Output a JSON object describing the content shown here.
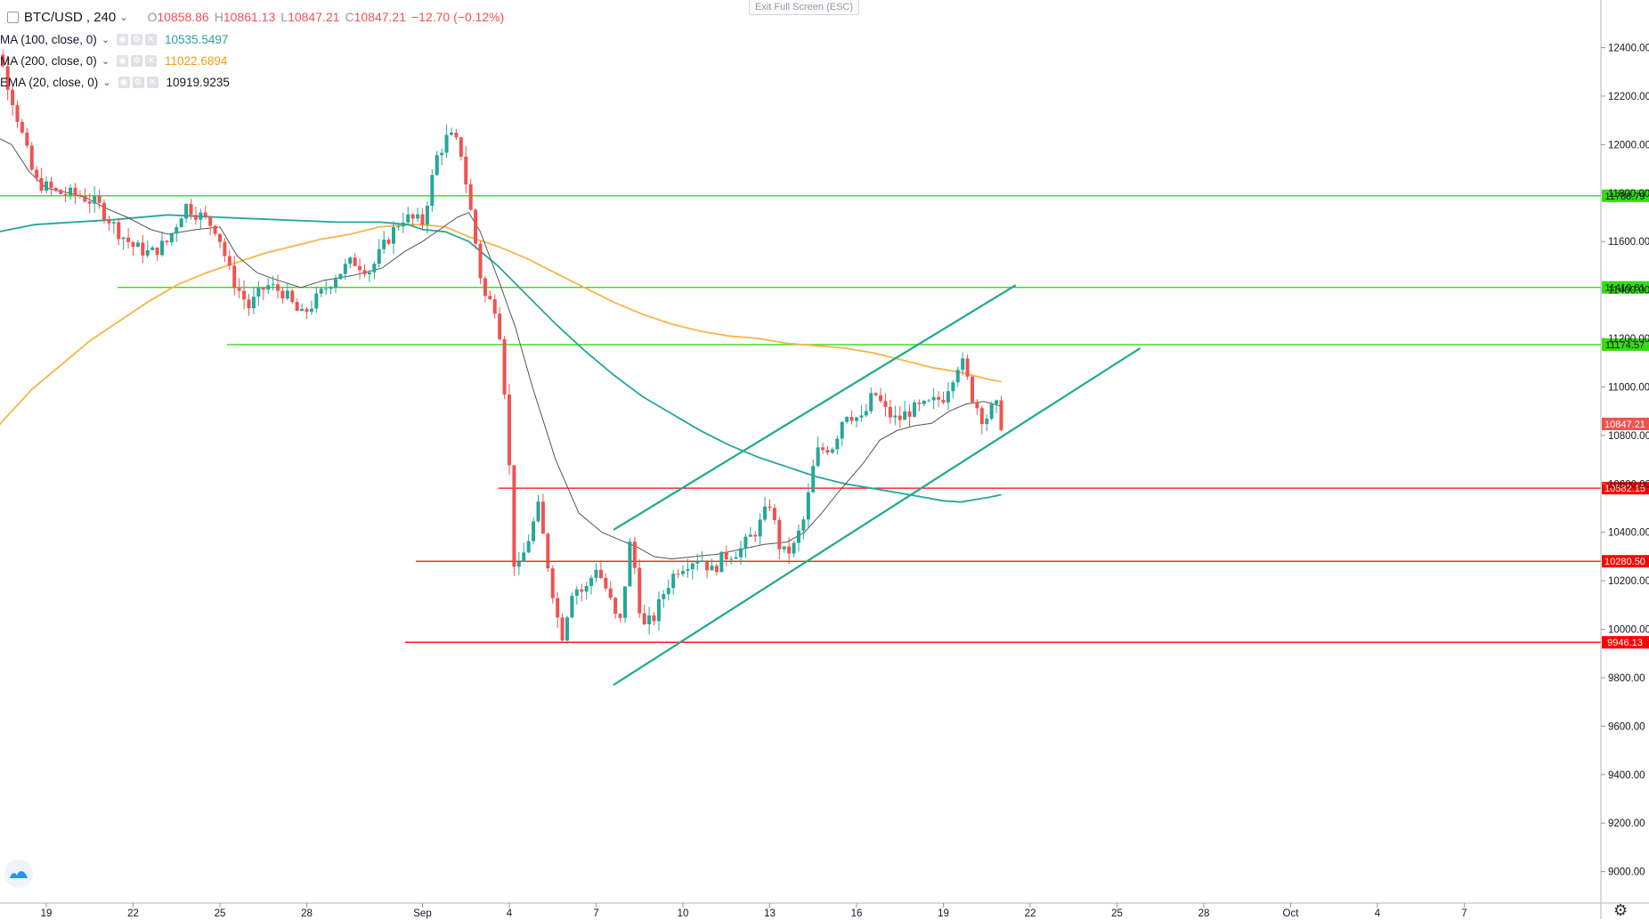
{
  "header": {
    "symbol": "BTC/USD",
    "interval": "240",
    "ohlc": [
      {
        "label": "O",
        "value": "10858.86"
      },
      {
        "label": "H",
        "value": "10861.13"
      },
      {
        "label": "L",
        "value": "10847.21"
      },
      {
        "label": "C",
        "value": "10847.21"
      }
    ],
    "change": "−12.70 (−0.12%)"
  },
  "exit_fullscreen_label": "Exit Full Screen (ESC)",
  "indicators": [
    {
      "name": "MA (100, close, 0)",
      "value": "10535.5497",
      "color": "#26a69a"
    },
    {
      "name": "MA (200, close, 0)",
      "value": "11022.6894",
      "color": "#f39c12"
    },
    {
      "name": "EMA (20, close, 0)",
      "value": "10919.9235",
      "color": "#555555"
    }
  ],
  "colors": {
    "up": "#26a69a",
    "down": "#ef5350",
    "support": "#ff0000",
    "resistance": "#33dd11",
    "channel": "#1fa98e",
    "ma100": "#26a69a",
    "ma200": "#f7b54a",
    "ema20": "#555555",
    "last_price": "#ef5350"
  },
  "chart_data": {
    "type": "candlestick",
    "x_tick_labels": [
      "19",
      "22",
      "25",
      "28",
      "Sep",
      "4",
      "7",
      "10",
      "13",
      "16",
      "19",
      "22",
      "25",
      "28",
      "Oct",
      "4",
      "7"
    ],
    "y_tick_labels": [
      "12400.00",
      "12200.00",
      "12000.00",
      "11800.00",
      "11600.00",
      "11400.00",
      "11200.00",
      "11000.00",
      "10800.00",
      "10600.00",
      "10400.00",
      "10200.00",
      "10000.00",
      "9800.00",
      "9600.00",
      "9400.00",
      "9200.00",
      "9000.00"
    ],
    "ylim": [
      8870,
      12560
    ],
    "last_price": {
      "value": 10847.21,
      "label": "10847.21"
    },
    "horizontal_levels": [
      {
        "value": 11788.79,
        "label": "11788.79",
        "kind": "resistance"
      },
      {
        "value": 11410.81,
        "label": "11410.81",
        "kind": "resistance"
      },
      {
        "value": 11174.57,
        "label": "11174.57",
        "kind": "resistance"
      },
      {
        "value": 10582.15,
        "label": "10582.15",
        "kind": "support"
      },
      {
        "value": 10280.5,
        "label": "10280.50",
        "kind": "support"
      },
      {
        "value": 9946.13,
        "label": "9946.13",
        "kind": "support"
      }
    ],
    "channel_lines": [
      {
        "from": [
          7.6,
          10410
        ],
        "to": [
          21.5,
          11420
        ]
      },
      {
        "from": [
          7.6,
          9770
        ],
        "to": [
          25.8,
          11160
        ]
      }
    ],
    "ma100_curve": [
      [
        16.5,
        11620
      ],
      [
        18.6,
        11670
      ],
      [
        21.3,
        11690
      ],
      [
        23.2,
        11710
      ],
      [
        25,
        11700
      ],
      [
        27,
        11690
      ],
      [
        29,
        11680
      ],
      [
        30.5,
        11680
      ],
      [
        31.5,
        11670
      ],
      [
        1.0,
        11650
      ],
      [
        1.8,
        11640
      ],
      [
        2.6,
        11600
      ],
      [
        3.6,
        11500
      ],
      [
        4.6,
        11380
      ],
      [
        5.6,
        11260
      ],
      [
        6.6,
        11150
      ],
      [
        7.6,
        11050
      ],
      [
        8.6,
        10960
      ],
      [
        9.6,
        10890
      ],
      [
        10.6,
        10820
      ],
      [
        11.6,
        10760
      ],
      [
        12.6,
        10710
      ],
      [
        13.6,
        10670
      ],
      [
        14.6,
        10630
      ],
      [
        15.6,
        10600
      ],
      [
        16.6,
        10580
      ],
      [
        17.6,
        10560
      ],
      [
        18.3,
        10545
      ],
      [
        19.0,
        10530
      ],
      [
        19.6,
        10525
      ],
      [
        20.6,
        10545
      ],
      [
        21.0,
        10555
      ]
    ],
    "ma200_curve": [
      [
        16.5,
        10720
      ],
      [
        17.5,
        10860
      ],
      [
        18.5,
        10990
      ],
      [
        19.5,
        11090
      ],
      [
        20.5,
        11190
      ],
      [
        21.5,
        11270
      ],
      [
        22.5,
        11350
      ],
      [
        23.5,
        11420
      ],
      [
        24.5,
        11470
      ],
      [
        25.5,
        11510
      ],
      [
        26.5,
        11550
      ],
      [
        27.5,
        11580
      ],
      [
        28.5,
        11610
      ],
      [
        29.5,
        11630
      ],
      [
        30.5,
        11660
      ],
      [
        31.5,
        11670
      ],
      [
        1.0,
        11670
      ],
      [
        1.8,
        11660
      ],
      [
        2.6,
        11620
      ],
      [
        3.6,
        11580
      ],
      [
        4.6,
        11530
      ],
      [
        5.6,
        11470
      ],
      [
        6.6,
        11410
      ],
      [
        7.6,
        11350
      ],
      [
        8.6,
        11300
      ],
      [
        9.6,
        11260
      ],
      [
        10.6,
        11230
      ],
      [
        11.6,
        11210
      ],
      [
        12.6,
        11200
      ],
      [
        13.6,
        11180
      ],
      [
        14.6,
        11170
      ],
      [
        15.6,
        11160
      ],
      [
        16.6,
        11140
      ],
      [
        17.6,
        11110
      ],
      [
        18.6,
        11080
      ],
      [
        19.6,
        11060
      ],
      [
        20.6,
        11030
      ],
      [
        21.0,
        11022
      ]
    ],
    "ema20_curve": [
      [
        16.5,
        11800
      ],
      [
        16.9,
        11950
      ],
      [
        17.3,
        12030
      ],
      [
        17.8,
        12000
      ],
      [
        18.4,
        11890
      ],
      [
        19.0,
        11820
      ],
      [
        19.8,
        11800
      ],
      [
        20.4,
        11780
      ],
      [
        21.0,
        11740
      ],
      [
        21.8,
        11700
      ],
      [
        22.6,
        11650
      ],
      [
        23.2,
        11630
      ],
      [
        24.2,
        11650
      ],
      [
        25.0,
        11660
      ],
      [
        25.6,
        11540
      ],
      [
        26.3,
        11470
      ],
      [
        27.0,
        11440
      ],
      [
        27.8,
        11410
      ],
      [
        28.6,
        11440
      ],
      [
        29.6,
        11460
      ],
      [
        30.6,
        11490
      ],
      [
        31.4,
        11560
      ],
      [
        1.0,
        11600
      ],
      [
        1.6,
        11650
      ],
      [
        2.2,
        11700
      ],
      [
        2.6,
        11720
      ],
      [
        3.0,
        11640
      ],
      [
        3.6,
        11450
      ],
      [
        4.2,
        11250
      ],
      [
        4.8,
        11000
      ],
      [
        5.6,
        10700
      ],
      [
        6.4,
        10480
      ],
      [
        7.2,
        10400
      ],
      [
        7.8,
        10370
      ],
      [
        8.4,
        10340
      ],
      [
        9.0,
        10300
      ],
      [
        9.6,
        10290
      ],
      [
        10.4,
        10300
      ],
      [
        11.2,
        10310
      ],
      [
        12.0,
        10330
      ],
      [
        12.8,
        10350
      ],
      [
        13.6,
        10360
      ],
      [
        14.2,
        10400
      ],
      [
        14.8,
        10480
      ],
      [
        15.4,
        10570
      ],
      [
        16.2,
        10680
      ],
      [
        16.8,
        10780
      ],
      [
        17.4,
        10820
      ],
      [
        18.0,
        10840
      ],
      [
        18.6,
        10850
      ],
      [
        19.2,
        10900
      ],
      [
        19.8,
        10930
      ],
      [
        20.4,
        10940
      ],
      [
        21.0,
        10920
      ]
    ],
    "anchor_points": [
      [
        16.5,
        11900
      ],
      [
        16.9,
        12300
      ],
      [
        17.3,
        12400
      ],
      [
        17.8,
        12200
      ],
      [
        18.6,
        11850
      ],
      [
        19.4,
        11800
      ],
      [
        20.2,
        11790
      ],
      [
        20.8,
        11750
      ],
      [
        21.5,
        11640
      ],
      [
        22.0,
        11580
      ],
      [
        22.6,
        11550
      ],
      [
        23.2,
        11600
      ],
      [
        23.8,
        11750
      ],
      [
        24.4,
        11700
      ],
      [
        24.9,
        11650
      ],
      [
        25.4,
        11450
      ],
      [
        26.0,
        11330
      ],
      [
        26.6,
        11420
      ],
      [
        27.2,
        11390
      ],
      [
        27.8,
        11290
      ],
      [
        28.4,
        11370
      ],
      [
        29.0,
        11460
      ],
      [
        29.6,
        11520
      ],
      [
        30.2,
        11480
      ],
      [
        30.8,
        11610
      ],
      [
        31.3,
        11700
      ],
      [
        1.0,
        11680
      ],
      [
        1.5,
        11950
      ],
      [
        1.9,
        12040
      ],
      [
        2.3,
        11990
      ],
      [
        2.7,
        11700
      ],
      [
        3.1,
        11380
      ],
      [
        3.6,
        11320
      ],
      [
        3.9,
        10900
      ],
      [
        4.2,
        10200
      ],
      [
        4.6,
        10350
      ],
      [
        5.0,
        10500
      ],
      [
        5.4,
        10220
      ],
      [
        5.8,
        9960
      ],
      [
        6.2,
        10180
      ],
      [
        6.6,
        10150
      ],
      [
        7.0,
        10260
      ],
      [
        7.4,
        10150
      ],
      [
        7.8,
        10000
      ],
      [
        8.2,
        10380
      ],
      [
        8.6,
        10000
      ],
      [
        9.0,
        10050
      ],
      [
        9.4,
        10170
      ],
      [
        9.8,
        10250
      ],
      [
        10.2,
        10280
      ],
      [
        10.6,
        10300
      ],
      [
        11.0,
        10240
      ],
      [
        11.4,
        10300
      ],
      [
        12.0,
        10330
      ],
      [
        12.6,
        10420
      ],
      [
        13.0,
        10520
      ],
      [
        13.4,
        10310
      ],
      [
        13.8,
        10330
      ],
      [
        14.2,
        10460
      ],
      [
        14.6,
        10730
      ],
      [
        15.2,
        10760
      ],
      [
        15.6,
        10900
      ],
      [
        16.2,
        10860
      ],
      [
        16.6,
        10980
      ],
      [
        17.0,
        10900
      ],
      [
        17.4,
        10860
      ],
      [
        17.8,
        10900
      ],
      [
        18.4,
        10920
      ],
      [
        19.0,
        10960
      ],
      [
        19.6,
        11120
      ],
      [
        20.0,
        10960
      ],
      [
        20.4,
        10860
      ],
      [
        20.8,
        10930
      ],
      [
        21.0,
        10848
      ]
    ]
  }
}
